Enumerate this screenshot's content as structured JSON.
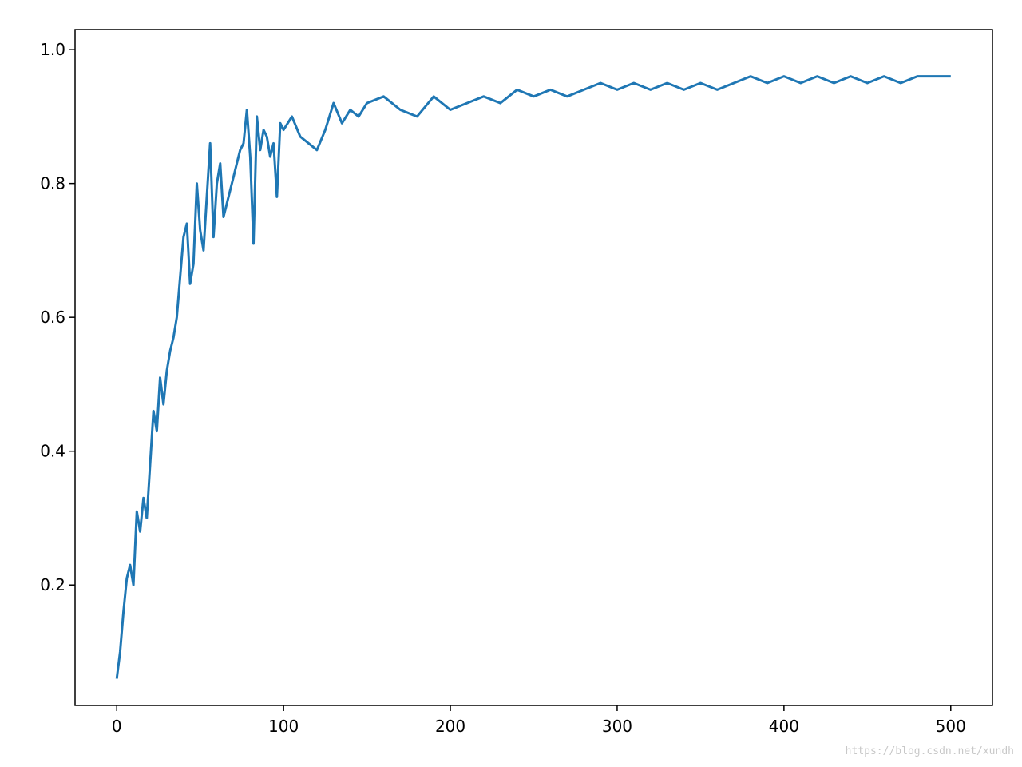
{
  "chart_data": {
    "type": "line",
    "title": "",
    "xlabel": "",
    "ylabel": "",
    "xlim": [
      -25,
      525
    ],
    "ylim": [
      0.02,
      1.03
    ],
    "grid": false,
    "x_ticks": [
      0,
      100,
      200,
      300,
      400,
      500
    ],
    "y_ticks": [
      0.2,
      0.4,
      0.6,
      0.8,
      1.0
    ],
    "x_tick_labels": [
      "0",
      "100",
      "200",
      "300",
      "400",
      "500"
    ],
    "y_tick_labels": [
      "0.2",
      "0.4",
      "0.6",
      "0.8",
      "1.0"
    ],
    "series": [
      {
        "color": "#1f77b4",
        "x": [
          0,
          2,
          4,
          6,
          8,
          10,
          12,
          14,
          16,
          18,
          20,
          22,
          24,
          26,
          28,
          30,
          32,
          34,
          36,
          38,
          40,
          42,
          44,
          46,
          48,
          50,
          52,
          54,
          56,
          58,
          60,
          62,
          64,
          66,
          68,
          70,
          72,
          74,
          76,
          78,
          80,
          82,
          84,
          86,
          88,
          90,
          92,
          94,
          96,
          98,
          100,
          105,
          110,
          115,
          120,
          125,
          130,
          135,
          140,
          145,
          150,
          160,
          170,
          180,
          190,
          200,
          210,
          220,
          230,
          240,
          250,
          260,
          270,
          280,
          290,
          300,
          310,
          320,
          330,
          340,
          350,
          360,
          370,
          380,
          390,
          400,
          410,
          420,
          430,
          440,
          450,
          460,
          470,
          480,
          490,
          500
        ],
        "y": [
          0.06,
          0.1,
          0.16,
          0.21,
          0.23,
          0.2,
          0.31,
          0.28,
          0.33,
          0.3,
          0.38,
          0.46,
          0.43,
          0.51,
          0.47,
          0.52,
          0.55,
          0.57,
          0.6,
          0.66,
          0.72,
          0.74,
          0.65,
          0.68,
          0.8,
          0.73,
          0.7,
          0.78,
          0.86,
          0.72,
          0.8,
          0.83,
          0.75,
          0.77,
          0.79,
          0.81,
          0.83,
          0.85,
          0.86,
          0.91,
          0.84,
          0.71,
          0.9,
          0.85,
          0.88,
          0.87,
          0.84,
          0.86,
          0.78,
          0.89,
          0.88,
          0.9,
          0.87,
          0.86,
          0.85,
          0.88,
          0.92,
          0.89,
          0.91,
          0.9,
          0.92,
          0.93,
          0.91,
          0.9,
          0.93,
          0.91,
          0.92,
          0.93,
          0.92,
          0.94,
          0.93,
          0.94,
          0.93,
          0.94,
          0.95,
          0.94,
          0.95,
          0.94,
          0.95,
          0.94,
          0.95,
          0.94,
          0.95,
          0.96,
          0.95,
          0.96,
          0.95,
          0.96,
          0.95,
          0.96,
          0.95,
          0.96,
          0.95,
          0.96,
          0.96,
          0.96
        ]
      }
    ]
  },
  "watermark": "https://blog.csdn.net/xundh"
}
